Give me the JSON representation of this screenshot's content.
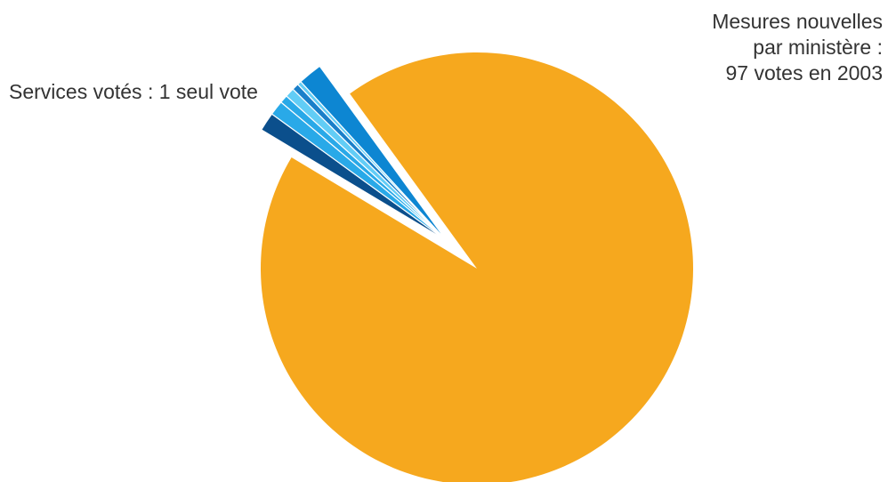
{
  "chart_data": {
    "type": "pie",
    "title": "",
    "slices": [
      {
        "name": "Services votés",
        "value": 93.6,
        "color": "#f6a81e"
      },
      {
        "name": "Mesures nouvelles 1",
        "value": 1.4,
        "color": "#0b4f8c"
      },
      {
        "name": "Mesures nouvelles 2",
        "value": 1.1,
        "color": "#29a9e8"
      },
      {
        "name": "Mesures nouvelles 3",
        "value": 0.6,
        "color": "#29a9e8"
      },
      {
        "name": "Mesures nouvelles 4",
        "value": 0.7,
        "color": "#62cdf6"
      },
      {
        "name": "Mesures nouvelles 5",
        "value": 0.5,
        "color": "#1a7fc9"
      },
      {
        "name": "Mesures nouvelles 6",
        "value": 0.3,
        "color": "#62cdf6"
      },
      {
        "name": "Mesures nouvelles 7",
        "value": 1.8,
        "color": "#0d86d2"
      }
    ],
    "exploded_group": [
      "Mesures nouvelles 1",
      "Mesures nouvelles 2",
      "Mesures nouvelles 3",
      "Mesures nouvelles 4",
      "Mesures nouvelles 5",
      "Mesures nouvelles 6",
      "Mesures nouvelles 7"
    ],
    "labels": {
      "main": "Services votés : 1 seul vote",
      "new_line1": "Mesures nouvelles",
      "new_line2": "par ministère :",
      "new_line3": "97 votes en 2003"
    }
  }
}
